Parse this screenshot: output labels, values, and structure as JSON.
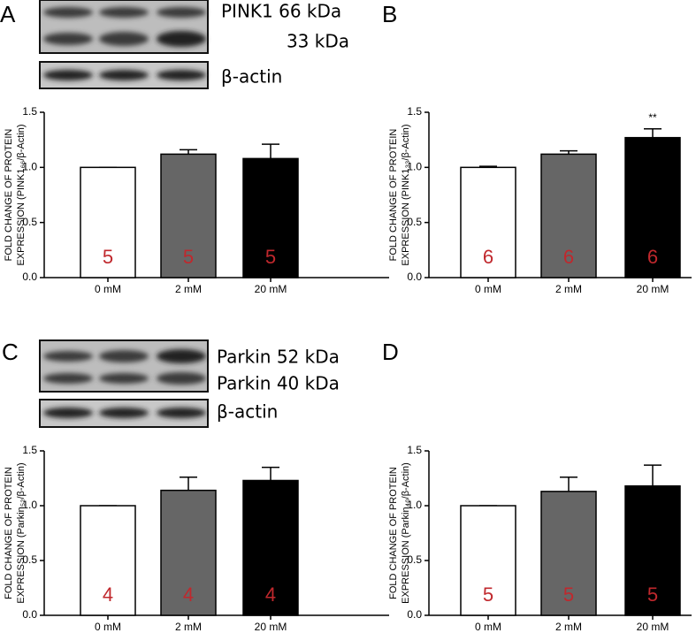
{
  "chart_data": [
    {
      "type": "bar",
      "panel_label": "A",
      "blot_labels": [
        "PINK1 66 kDa",
        "33 kDa",
        "β-actin"
      ],
      "y_label": [
        "FOLD CHANGE OF PROTEIN",
        "EXPRESSION (PINK1₆₆/β-Actin)"
      ],
      "categories": [
        "0 mM",
        "2 mM",
        "20 mM"
      ],
      "values": [
        1.0,
        1.12,
        1.08
      ],
      "errors": [
        0,
        0.04,
        0.13
      ],
      "colors": [
        "#ffffff",
        "#666666",
        "#000000"
      ],
      "n_labels": [
        "5",
        "5",
        "5"
      ],
      "ylim": [
        0,
        1.5
      ],
      "yticks": [
        {
          "value": 0,
          "label": "0.0"
        },
        0.5,
        {
          "value": 1,
          "label": "1.0"
        },
        1.5
      ]
    },
    {
      "type": "bar",
      "panel_label": "B",
      "y_label": [
        "FOLD CHANGE OF PROTEIN",
        "EXPRESSION (PINK1₃₃/β-Actin)"
      ],
      "categories": [
        "0 mM",
        "2 mM",
        "20 mM"
      ],
      "values": [
        1.0,
        1.12,
        1.27
      ],
      "errors": [
        0.01,
        0.03,
        0.08
      ],
      "colors": [
        "#ffffff",
        "#666666",
        "#000000"
      ],
      "n_labels": [
        "6",
        "6",
        "6"
      ],
      "significance": [
        null,
        null,
        "**"
      ],
      "ylim": [
        0,
        1.5
      ],
      "yticks": [
        {
          "value": 0,
          "label": "0.0"
        },
        0.5,
        {
          "value": 1,
          "label": "1.0"
        },
        1.5
      ]
    },
    {
      "type": "bar",
      "panel_label": "C",
      "blot_labels": [
        "Parkin 52 kDa",
        "Parkin 40 kDa",
        "β-actin"
      ],
      "y_label": [
        "FOLD CHANGE OF PROTEIN",
        "EXPRESSION (Parkin₅₂/β-Actin)"
      ],
      "categories": [
        "0 mM",
        "2 mM",
        "20 mM"
      ],
      "values": [
        1.0,
        1.14,
        1.23
      ],
      "errors": [
        0,
        0.12,
        0.12
      ],
      "colors": [
        "#ffffff",
        "#666666",
        "#000000"
      ],
      "n_labels": [
        "4",
        "4",
        "4"
      ],
      "ylim": [
        0,
        1.5
      ],
      "yticks": [
        {
          "value": 0,
          "label": "0.0"
        },
        0.5,
        {
          "value": 1,
          "label": "1.0"
        },
        1.5
      ]
    },
    {
      "type": "bar",
      "panel_label": "D",
      "y_label": [
        "FOLD CHANGE OF PROTEIN",
        "EXPRESSION (Parkin₄₀/β-Actin)"
      ],
      "categories": [
        "0 mM",
        "2 mM",
        "20 mM"
      ],
      "values": [
        1.0,
        1.13,
        1.18
      ],
      "errors": [
        0,
        0.13,
        0.19
      ],
      "colors": [
        "#ffffff",
        "#666666",
        "#000000"
      ],
      "n_labels": [
        "5",
        "5",
        "5"
      ],
      "ylim": [
        0,
        1.5
      ],
      "yticks": [
        {
          "value": 0,
          "label": "0.0"
        },
        0.5,
        {
          "value": 1,
          "label": "1.0"
        },
        1.5
      ]
    }
  ]
}
